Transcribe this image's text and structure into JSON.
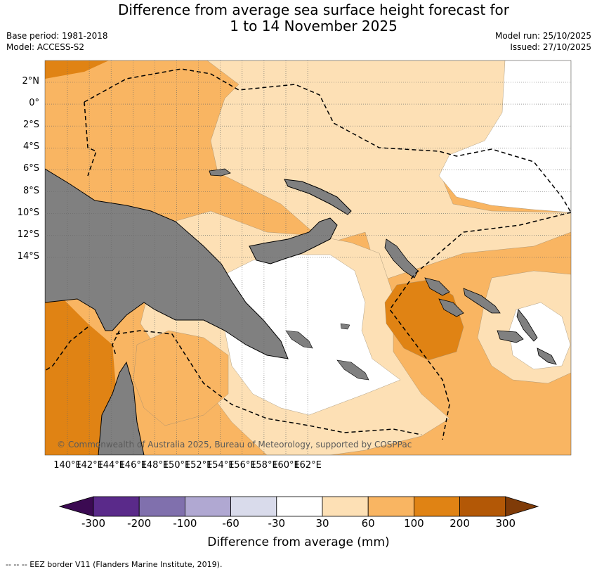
{
  "title_line1": "Difference from average sea surface height forecast for",
  "title_line2": "1 to 14 November 2025",
  "base_period": "Base period: 1981-2018",
  "model": "Model: ACCESS-S2",
  "model_run": "Model run: 25/10/2025",
  "issued": "Issued: 27/10/2025",
  "copyright": "© Commonwealth of Australia 2025, Bureau of Meteorology, supported by COSPPac",
  "lat_labels": [
    "2°N",
    "0°",
    "2°S",
    "4°S",
    "6°S",
    "8°S",
    "10°S",
    "12°S",
    "14°S"
  ],
  "lon_labels": [
    "140°E",
    "142°E",
    "144°E",
    "146°E",
    "148°E",
    "150°E",
    "152°E",
    "154°E",
    "156°E",
    "158°E",
    "160°E",
    "162°E"
  ],
  "colorbar": {
    "title": "Difference from average (mm)",
    "tick_labels": [
      "-300",
      "-200",
      "-100",
      "-60",
      "-30",
      "30",
      "60",
      "100",
      "200",
      "300"
    ],
    "colors": [
      "#3b0a52",
      "#5a2a8a",
      "#8070ad",
      "#b0a8d2",
      "#d9dbeb",
      "#ffffff",
      "#fde0b5",
      "#f9b562",
      "#e08314",
      "#b35806",
      "#7f3b08"
    ],
    "land_color": "#808080"
  },
  "footnote": "--  --  -- EEZ border V11 (Flanders Marine Institute, 2019)."
}
